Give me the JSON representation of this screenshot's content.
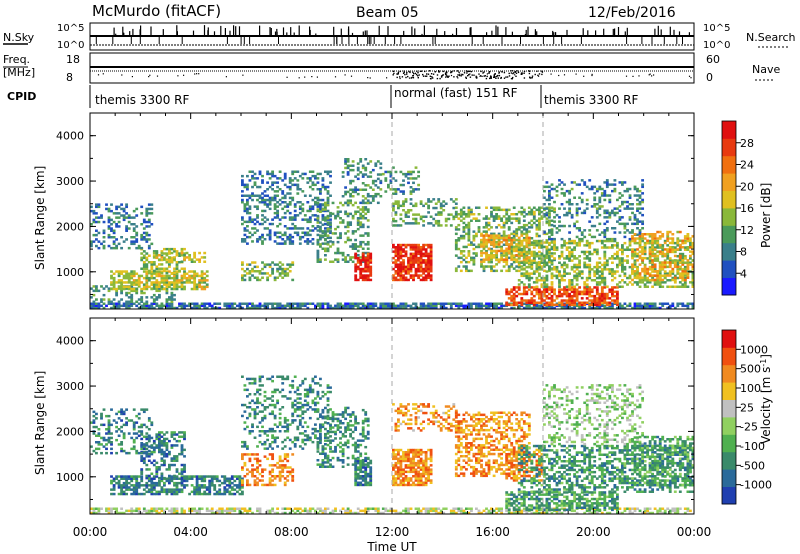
{
  "header": {
    "station": "McMurdo (fitACF)",
    "beam": "Beam 05",
    "date": "12/Feb/2016"
  },
  "top_panels": {
    "nsky_label": "N.Sky",
    "nsearch_label": "N.Search",
    "nsky_ticks": [
      "10^5",
      "10^0"
    ],
    "nsearch_ticks": [
      "10^5",
      "10^0"
    ],
    "freq_label_1": "Freq.",
    "freq_label_2": "[MHz]",
    "freq_ticks": [
      "18",
      "8"
    ],
    "nave_label": "Nave",
    "nave_ticks": [
      "60",
      "0"
    ],
    "cpid_label": "CPID",
    "cpid_segments": [
      {
        "label": "themis 3300 RF",
        "start_hour": 0,
        "end_hour": 12
      },
      {
        "label": "normal (fast) 151 RF",
        "start_hour": 12,
        "end_hour": 18
      },
      {
        "label": "themis 3300 RF",
        "start_hour": 18,
        "end_hour": 24
      }
    ]
  },
  "chart_data": [
    {
      "type": "heatmap",
      "name": "power",
      "ylabel": "Slant Range [km]",
      "ylim": [
        180,
        4500
      ],
      "xlim": [
        0,
        24
      ],
      "y_ticks": [
        "1000",
        "2000",
        "3000",
        "4000"
      ],
      "colorbar": {
        "label": "Power [dB]",
        "ticks": [
          "28",
          "24",
          "20",
          "16",
          "12",
          "8",
          "4"
        ],
        "colors": [
          "#1a1aff",
          "#2050c0",
          "#3a7f8a",
          "#4a9a5a",
          "#8ab83a",
          "#e0c020",
          "#f0a020",
          "#f07010",
          "#e83a10",
          "#e01010"
        ]
      },
      "blobs": [
        {
          "t0": 0.0,
          "t1": 24.0,
          "r0": 180,
          "r1": 320,
          "level": 0.22,
          "density": 0.75
        },
        {
          "t0": 0.0,
          "t1": 3.5,
          "r0": 320,
          "r1": 700,
          "level": 0.35,
          "density": 0.35
        },
        {
          "t0": 0.8,
          "t1": 4.7,
          "r0": 600,
          "r1": 1000,
          "level": 0.5,
          "density": 0.7
        },
        {
          "t0": 2.0,
          "t1": 3.8,
          "r0": 950,
          "r1": 1500,
          "level": 0.45,
          "density": 0.45
        },
        {
          "t0": 0.0,
          "t1": 2.5,
          "r0": 1500,
          "r1": 2500,
          "level": 0.25,
          "density": 0.35
        },
        {
          "t0": 2.5,
          "t1": 4.5,
          "r0": 1200,
          "r1": 1400,
          "level": 0.5,
          "density": 0.45
        },
        {
          "t0": 6.0,
          "t1": 8.0,
          "r0": 800,
          "r1": 1200,
          "level": 0.4,
          "density": 0.45
        },
        {
          "t0": 6.0,
          "t1": 9.5,
          "r0": 1600,
          "r1": 3200,
          "level": 0.25,
          "density": 0.35
        },
        {
          "t0": 9.0,
          "t1": 11.0,
          "r0": 1200,
          "r1": 2500,
          "level": 0.35,
          "density": 0.35
        },
        {
          "t0": 10.5,
          "t1": 11.1,
          "r0": 800,
          "r1": 1400,
          "level": 0.92,
          "density": 0.8
        },
        {
          "t0": 10.0,
          "t1": 11.5,
          "r0": 2500,
          "r1": 3500,
          "level": 0.3,
          "density": 0.3
        },
        {
          "t0": 12.0,
          "t1": 13.5,
          "r0": 800,
          "r1": 1600,
          "level": 0.88,
          "density": 0.75
        },
        {
          "t0": 12.0,
          "t1": 14.5,
          "r0": 2000,
          "r1": 2600,
          "level": 0.35,
          "density": 0.35
        },
        {
          "t0": 11.5,
          "t1": 13.0,
          "r0": 2700,
          "r1": 3300,
          "level": 0.3,
          "density": 0.3
        },
        {
          "t0": 14.5,
          "t1": 18.5,
          "r0": 1000,
          "r1": 2400,
          "level": 0.4,
          "density": 0.4
        },
        {
          "t0": 15.5,
          "t1": 17.5,
          "r0": 1200,
          "r1": 1800,
          "level": 0.6,
          "density": 0.6
        },
        {
          "t0": 16.5,
          "t1": 21.0,
          "r0": 250,
          "r1": 650,
          "level": 0.82,
          "density": 0.7
        },
        {
          "t0": 17.0,
          "t1": 24.0,
          "r0": 650,
          "r1": 1700,
          "level": 0.45,
          "density": 0.45
        },
        {
          "t0": 18.0,
          "t1": 22.0,
          "r0": 1700,
          "r1": 3000,
          "level": 0.28,
          "density": 0.28
        },
        {
          "t0": 21.5,
          "t1": 24.0,
          "r0": 800,
          "r1": 1900,
          "level": 0.6,
          "density": 0.45
        }
      ]
    },
    {
      "type": "heatmap",
      "name": "velocity",
      "ylabel": "Slant Range [km]",
      "xlabel": "Time UT",
      "ylim": [
        180,
        4500
      ],
      "xlim": [
        0,
        24
      ],
      "y_ticks": [
        "1000",
        "2000",
        "3000",
        "4000"
      ],
      "x_ticks": [
        "00:00",
        "04:00",
        "08:00",
        "12:00",
        "16:00",
        "20:00",
        "00:00"
      ],
      "colorbar": {
        "label": "Velocity [m s",
        "label_sup": "-1",
        "label_end": "]",
        "ticks": [
          "1000",
          "500",
          "100",
          "25",
          "-25",
          "-100",
          "-500",
          "-1000"
        ],
        "colors": [
          "#1f3fb0",
          "#2a6a9a",
          "#3a8a6a",
          "#50b050",
          "#90d060",
          "#c0c0c0",
          "#f0c020",
          "#f08a20",
          "#f05010",
          "#e01010"
        ]
      },
      "blobs": [
        {
          "t0": 0.0,
          "t1": 24.0,
          "r0": 180,
          "r1": 320,
          "level": 0.52,
          "density": 0.6
        },
        {
          "t0": 0.8,
          "t1": 6.0,
          "r0": 600,
          "r1": 1000,
          "level": 0.2,
          "density": 0.65
        },
        {
          "t0": 2.0,
          "t1": 3.8,
          "r0": 950,
          "r1": 2000,
          "level": 0.2,
          "density": 0.45
        },
        {
          "t0": 0.0,
          "t1": 2.5,
          "r0": 1500,
          "r1": 2500,
          "level": 0.2,
          "density": 0.3
        },
        {
          "t0": 6.0,
          "t1": 8.0,
          "r0": 800,
          "r1": 1500,
          "level": 0.75,
          "density": 0.45
        },
        {
          "t0": 6.0,
          "t1": 9.5,
          "r0": 1600,
          "r1": 3200,
          "level": 0.25,
          "density": 0.3
        },
        {
          "t0": 9.0,
          "t1": 11.0,
          "r0": 1200,
          "r1": 2500,
          "level": 0.25,
          "density": 0.35
        },
        {
          "t0": 10.5,
          "t1": 11.1,
          "r0": 800,
          "r1": 1400,
          "level": 0.2,
          "density": 0.75
        },
        {
          "t0": 12.0,
          "t1": 13.5,
          "r0": 800,
          "r1": 1600,
          "level": 0.74,
          "density": 0.75
        },
        {
          "t0": 12.0,
          "t1": 14.5,
          "r0": 2000,
          "r1": 2600,
          "level": 0.72,
          "density": 0.35
        },
        {
          "t0": 14.5,
          "t1": 17.5,
          "r0": 1000,
          "r1": 2400,
          "level": 0.74,
          "density": 0.45
        },
        {
          "t0": 16.5,
          "t1": 18.0,
          "r0": 900,
          "r1": 1600,
          "level": 0.76,
          "density": 0.5
        },
        {
          "t0": 16.5,
          "t1": 21.0,
          "r0": 250,
          "r1": 650,
          "level": 0.3,
          "density": 0.65
        },
        {
          "t0": 17.0,
          "t1": 24.0,
          "r0": 650,
          "r1": 1700,
          "level": 0.28,
          "density": 0.45
        },
        {
          "t0": 18.0,
          "t1": 22.0,
          "r0": 1700,
          "r1": 3000,
          "level": 0.45,
          "density": 0.3
        },
        {
          "t0": 21.5,
          "t1": 24.0,
          "r0": 800,
          "r1": 1900,
          "level": 0.3,
          "density": 0.45
        }
      ]
    }
  ]
}
